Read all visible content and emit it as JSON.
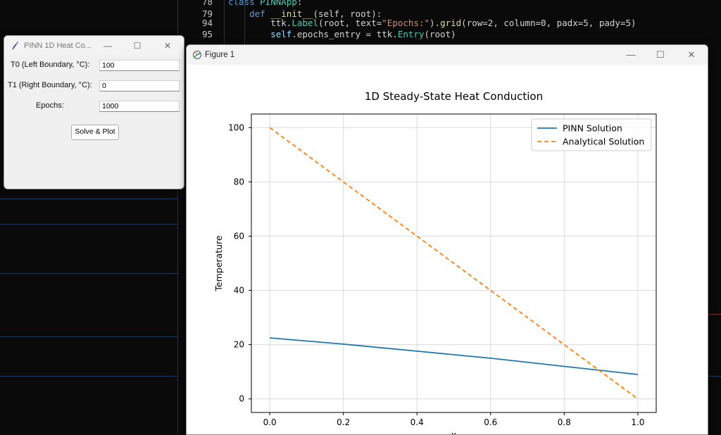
{
  "editor": {
    "lines": [
      {
        "num": "78",
        "tokens": [
          {
            "t": "class ",
            "c": "kw"
          },
          {
            "t": "PINNApp",
            "c": "cls"
          },
          {
            "t": ":",
            "c": ""
          }
        ]
      },
      {
        "num": "79",
        "tokens": [
          {
            "t": "    def ",
            "c": "kw"
          },
          {
            "t": "__init__",
            "c": "fn"
          },
          {
            "t": "(self, root):",
            "c": ""
          }
        ]
      },
      {
        "num": "94",
        "tokens": [
          {
            "t": "        ttk.",
            "c": ""
          },
          {
            "t": "Label",
            "c": "cls"
          },
          {
            "t": "(root, text=",
            "c": ""
          },
          {
            "t": "\"Epochs:\"",
            "c": "str"
          },
          {
            "t": ").",
            "c": ""
          },
          {
            "t": "grid",
            "c": "fn"
          },
          {
            "t": "(row=2, column=0, padx=5, pady=5)",
            "c": ""
          }
        ]
      },
      {
        "num": "95",
        "tokens": [
          {
            "t": "        self",
            "c": "self"
          },
          {
            "t": ".epochs_entry = ttk.",
            "c": ""
          },
          {
            "t": "Entry",
            "c": "cls"
          },
          {
            "t": "(root)",
            "c": ""
          }
        ]
      }
    ]
  },
  "tk_app": {
    "title": "PINN 1D Heat Co...",
    "fields": [
      {
        "label": "T0 (Left Boundary, °C):",
        "value": "100"
      },
      {
        "label": "T1 (Right Boundary, °C):",
        "value": "0"
      },
      {
        "label": "Epochs:",
        "value": "1000"
      }
    ],
    "button_label": "Solve & Plot",
    "controls": {
      "minimize": "—",
      "maximize": "☐",
      "close": "✕"
    }
  },
  "figure_window": {
    "title": "Figure 1",
    "controls": {
      "minimize": "—",
      "maximize": "☐",
      "close": "✕"
    }
  },
  "chart_data": {
    "type": "line",
    "title": "1D Steady-State Heat Conduction",
    "xlabel": "x",
    "ylabel": "Temperature",
    "xlim": [
      -0.05,
      1.05
    ],
    "ylim": [
      -5,
      105
    ],
    "xticks": [
      "0.0",
      "0.2",
      "0.4",
      "0.6",
      "0.8",
      "1.0"
    ],
    "yticks": [
      "0",
      "20",
      "40",
      "60",
      "80",
      "100"
    ],
    "grid": true,
    "legend_position": "top-right",
    "series": [
      {
        "name": "PINN Solution",
        "color": "#1f77b4",
        "style": "solid",
        "x": [
          0.0,
          0.2,
          0.4,
          0.6,
          0.8,
          1.0
        ],
        "y": [
          22.5,
          20.2,
          17.6,
          15.0,
          12.0,
          9.0
        ]
      },
      {
        "name": "Analytical Solution",
        "color": "#ff7f0e",
        "style": "dashed",
        "x": [
          0.0,
          1.0
        ],
        "y": [
          100,
          0
        ]
      }
    ]
  }
}
